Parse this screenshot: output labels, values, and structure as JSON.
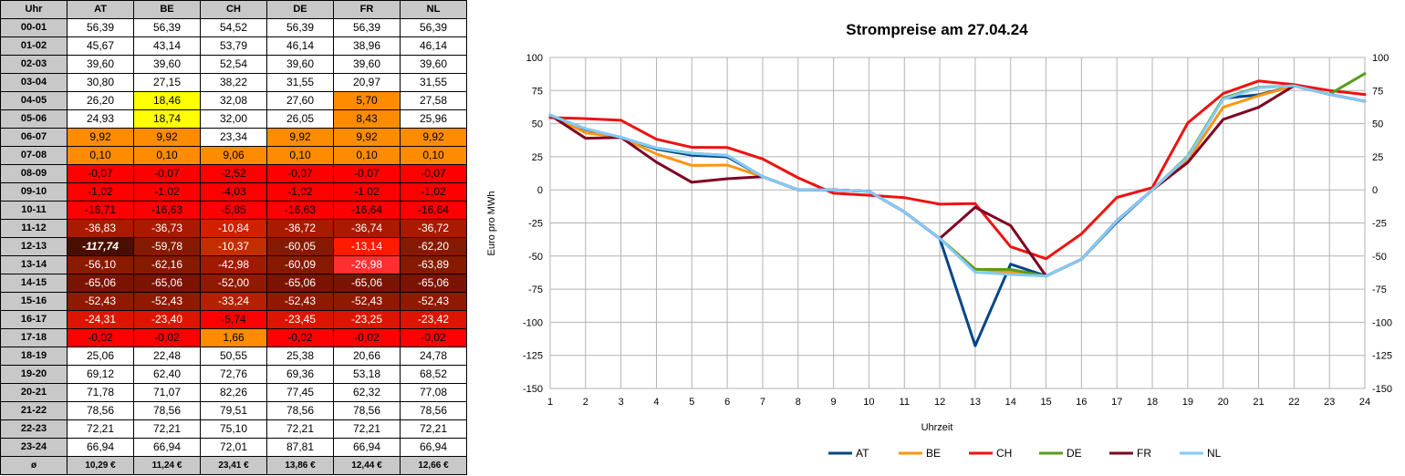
{
  "table": {
    "corner": "Uhr",
    "columns": [
      "AT",
      "BE",
      "CH",
      "DE",
      "FR",
      "NL"
    ],
    "rows": [
      {
        "label": "00-01",
        "cells": [
          {
            "v": "56,39",
            "bg": "#ffffff"
          },
          {
            "v": "56,39",
            "bg": "#ffffff"
          },
          {
            "v": "54,52",
            "bg": "#ffffff"
          },
          {
            "v": "56,39",
            "bg": "#ffffff"
          },
          {
            "v": "56,39",
            "bg": "#ffffff"
          },
          {
            "v": "56,39",
            "bg": "#ffffff"
          }
        ]
      },
      {
        "label": "01-02",
        "cells": [
          {
            "v": "45,67",
            "bg": "#ffffff"
          },
          {
            "v": "43,14",
            "bg": "#ffffff"
          },
          {
            "v": "53,79",
            "bg": "#ffffff"
          },
          {
            "v": "46,14",
            "bg": "#ffffff"
          },
          {
            "v": "38,96",
            "bg": "#ffffff"
          },
          {
            "v": "46,14",
            "bg": "#ffffff"
          }
        ]
      },
      {
        "label": "02-03",
        "cells": [
          {
            "v": "39,60",
            "bg": "#ffffff"
          },
          {
            "v": "39,60",
            "bg": "#ffffff"
          },
          {
            "v": "52,54",
            "bg": "#ffffff"
          },
          {
            "v": "39,60",
            "bg": "#ffffff"
          },
          {
            "v": "39,60",
            "bg": "#ffffff"
          },
          {
            "v": "39,60",
            "bg": "#ffffff"
          }
        ]
      },
      {
        "label": "03-04",
        "cells": [
          {
            "v": "30,80",
            "bg": "#ffffff"
          },
          {
            "v": "27,15",
            "bg": "#ffffff"
          },
          {
            "v": "38,22",
            "bg": "#ffffff"
          },
          {
            "v": "31,55",
            "bg": "#ffffff"
          },
          {
            "v": "20,97",
            "bg": "#ffffff"
          },
          {
            "v": "31,55",
            "bg": "#ffffff"
          }
        ]
      },
      {
        "label": "04-05",
        "cells": [
          {
            "v": "26,20",
            "bg": "#ffffff"
          },
          {
            "v": "18,46",
            "bg": "#ffff00"
          },
          {
            "v": "32,08",
            "bg": "#ffffff"
          },
          {
            "v": "27,60",
            "bg": "#ffffff"
          },
          {
            "v": "5,70",
            "bg": "#ff8c00"
          },
          {
            "v": "27,58",
            "bg": "#ffffff"
          }
        ]
      },
      {
        "label": "05-06",
        "cells": [
          {
            "v": "24,93",
            "bg": "#ffffff"
          },
          {
            "v": "18,74",
            "bg": "#ffff00"
          },
          {
            "v": "32,00",
            "bg": "#ffffff"
          },
          {
            "v": "26,05",
            "bg": "#ffffff"
          },
          {
            "v": "8,43",
            "bg": "#ff8c00"
          },
          {
            "v": "25,96",
            "bg": "#ffffff"
          }
        ]
      },
      {
        "label": "06-07",
        "cells": [
          {
            "v": "9,92",
            "bg": "#ff8c00"
          },
          {
            "v": "9,92",
            "bg": "#ff8c00"
          },
          {
            "v": "23,34",
            "bg": "#ffffff"
          },
          {
            "v": "9,92",
            "bg": "#ff8c00"
          },
          {
            "v": "9,92",
            "bg": "#ff8c00"
          },
          {
            "v": "9,92",
            "bg": "#ff8c00"
          }
        ]
      },
      {
        "label": "07-08",
        "cells": [
          {
            "v": "0,10",
            "bg": "#ff8c00"
          },
          {
            "v": "0,10",
            "bg": "#ff8c00"
          },
          {
            "v": "9,06",
            "bg": "#ff8c00"
          },
          {
            "v": "0,10",
            "bg": "#ff8c00"
          },
          {
            "v": "0,10",
            "bg": "#ff8c00"
          },
          {
            "v": "0,10",
            "bg": "#ff8c00"
          }
        ]
      },
      {
        "label": "08-09",
        "cells": [
          {
            "v": "-0,07",
            "bg": "#ff0000"
          },
          {
            "v": "-0,07",
            "bg": "#ff0000"
          },
          {
            "v": "-2,52",
            "bg": "#ff0000"
          },
          {
            "v": "-0,07",
            "bg": "#ff0000"
          },
          {
            "v": "-0,07",
            "bg": "#ff0000"
          },
          {
            "v": "-0,07",
            "bg": "#ff0000"
          }
        ]
      },
      {
        "label": "09-10",
        "cells": [
          {
            "v": "-1,02",
            "bg": "#ff0000"
          },
          {
            "v": "-1,02",
            "bg": "#ff0000"
          },
          {
            "v": "-4,03",
            "bg": "#ff0000"
          },
          {
            "v": "-1,02",
            "bg": "#ff0000"
          },
          {
            "v": "-1,02",
            "bg": "#ff0000"
          },
          {
            "v": "-1,02",
            "bg": "#ff0000"
          }
        ]
      },
      {
        "label": "10-11",
        "cells": [
          {
            "v": "-16,71",
            "bg": "#ff0000"
          },
          {
            "v": "-16,63",
            "bg": "#ff0000"
          },
          {
            "v": "-5,85",
            "bg": "#ff0000"
          },
          {
            "v": "-16,63",
            "bg": "#ff0000"
          },
          {
            "v": "-16,64",
            "bg": "#ff0000"
          },
          {
            "v": "-16,64",
            "bg": "#ff0000"
          }
        ]
      },
      {
        "label": "11-12",
        "cells": [
          {
            "v": "-36,83",
            "bg": "#aa1a00"
          },
          {
            "v": "-36,73",
            "bg": "#aa1a00"
          },
          {
            "v": "-10,84",
            "bg": "#d02000"
          },
          {
            "v": "-36,72",
            "bg": "#aa1a00"
          },
          {
            "v": "-36,74",
            "bg": "#aa1a00"
          },
          {
            "v": "-36,72",
            "bg": "#aa1a00"
          }
        ]
      },
      {
        "label": "12-13",
        "cells": [
          {
            "v": "-117,74",
            "bg": "#4a0e00",
            "bold": true,
            "italic": true
          },
          {
            "v": "-59,78",
            "bg": "#861a00"
          },
          {
            "v": "-10,37",
            "bg": "#c22e00"
          },
          {
            "v": "-60,05",
            "bg": "#861a00"
          },
          {
            "v": "-13,14",
            "bg": "#ff1a00"
          },
          {
            "v": "-62,20",
            "bg": "#861a00"
          }
        ]
      },
      {
        "label": "13-14",
        "cells": [
          {
            "v": "-56,10",
            "bg": "#8a1a00"
          },
          {
            "v": "-62,16",
            "bg": "#861a00"
          },
          {
            "v": "-42,98",
            "bg": "#a01a00"
          },
          {
            "v": "-60,09",
            "bg": "#861a00"
          },
          {
            "v": "-26,98",
            "bg": "#ff3030"
          },
          {
            "v": "-63,89",
            "bg": "#861a00"
          }
        ]
      },
      {
        "label": "14-15",
        "cells": [
          {
            "v": "-65,06",
            "bg": "#7a1400"
          },
          {
            "v": "-65,06",
            "bg": "#7a1400"
          },
          {
            "v": "-52,00",
            "bg": "#901a00"
          },
          {
            "v": "-65,06",
            "bg": "#7a1400"
          },
          {
            "v": "-65,06",
            "bg": "#7a1400"
          },
          {
            "v": "-65,06",
            "bg": "#7a1400"
          }
        ]
      },
      {
        "label": "15-16",
        "cells": [
          {
            "v": "-52,43",
            "bg": "#901a00"
          },
          {
            "v": "-52,43",
            "bg": "#901a00"
          },
          {
            "v": "-33,24",
            "bg": "#b42000"
          },
          {
            "v": "-52,43",
            "bg": "#901a00"
          },
          {
            "v": "-52,43",
            "bg": "#901a00"
          },
          {
            "v": "-52,43",
            "bg": "#901a00"
          }
        ]
      },
      {
        "label": "16-17",
        "cells": [
          {
            "v": "-24,31",
            "bg": "#dd1500"
          },
          {
            "v": "-23,40",
            "bg": "#dd1500"
          },
          {
            "v": "-5,74",
            "bg": "#ff0000"
          },
          {
            "v": "-23,45",
            "bg": "#dd1500"
          },
          {
            "v": "-23,25",
            "bg": "#dd1500"
          },
          {
            "v": "-23,42",
            "bg": "#dd1500"
          }
        ]
      },
      {
        "label": "17-18",
        "cells": [
          {
            "v": "-0,02",
            "bg": "#ff0000"
          },
          {
            "v": "-0,02",
            "bg": "#ff0000"
          },
          {
            "v": "1,66",
            "bg": "#ff8c00"
          },
          {
            "v": "-0,02",
            "bg": "#ff0000"
          },
          {
            "v": "-0,02",
            "bg": "#ff0000"
          },
          {
            "v": "-0,02",
            "bg": "#ff0000"
          }
        ]
      },
      {
        "label": "18-19",
        "cells": [
          {
            "v": "25,06",
            "bg": "#ffffff"
          },
          {
            "v": "22,48",
            "bg": "#ffffff"
          },
          {
            "v": "50,55",
            "bg": "#ffffff"
          },
          {
            "v": "25,38",
            "bg": "#ffffff"
          },
          {
            "v": "20,66",
            "bg": "#ffffff"
          },
          {
            "v": "24,78",
            "bg": "#ffffff"
          }
        ]
      },
      {
        "label": "19-20",
        "cells": [
          {
            "v": "69,12",
            "bg": "#ffffff"
          },
          {
            "v": "62,40",
            "bg": "#ffffff"
          },
          {
            "v": "72,76",
            "bg": "#ffffff"
          },
          {
            "v": "69,36",
            "bg": "#ffffff"
          },
          {
            "v": "53,18",
            "bg": "#ffffff"
          },
          {
            "v": "68,52",
            "bg": "#ffffff"
          }
        ]
      },
      {
        "label": "20-21",
        "cells": [
          {
            "v": "71,78",
            "bg": "#ffffff"
          },
          {
            "v": "71,07",
            "bg": "#ffffff"
          },
          {
            "v": "82,26",
            "bg": "#ffffff"
          },
          {
            "v": "77,45",
            "bg": "#ffffff"
          },
          {
            "v": "62,32",
            "bg": "#ffffff"
          },
          {
            "v": "77,08",
            "bg": "#ffffff"
          }
        ]
      },
      {
        "label": "21-22",
        "cells": [
          {
            "v": "78,56",
            "bg": "#ffffff"
          },
          {
            "v": "78,56",
            "bg": "#ffffff"
          },
          {
            "v": "79,51",
            "bg": "#ffffff"
          },
          {
            "v": "78,56",
            "bg": "#ffffff"
          },
          {
            "v": "78,56",
            "bg": "#ffffff"
          },
          {
            "v": "78,56",
            "bg": "#ffffff"
          }
        ]
      },
      {
        "label": "22-23",
        "cells": [
          {
            "v": "72,21",
            "bg": "#ffffff"
          },
          {
            "v": "72,21",
            "bg": "#ffffff"
          },
          {
            "v": "75,10",
            "bg": "#ffffff"
          },
          {
            "v": "72,21",
            "bg": "#ffffff"
          },
          {
            "v": "72,21",
            "bg": "#ffffff"
          },
          {
            "v": "72,21",
            "bg": "#ffffff"
          }
        ]
      },
      {
        "label": "23-24",
        "cells": [
          {
            "v": "66,94",
            "bg": "#ffffff"
          },
          {
            "v": "66,94",
            "bg": "#ffffff"
          },
          {
            "v": "72,01",
            "bg": "#ffffff"
          },
          {
            "v": "87,81",
            "bg": "#ffffff"
          },
          {
            "v": "66,94",
            "bg": "#ffffff"
          },
          {
            "v": "66,94",
            "bg": "#ffffff"
          }
        ]
      }
    ],
    "avg_label": "ø",
    "averages": [
      "10,29 €",
      "11,24 €",
      "23,41 €",
      "13,86 €",
      "12,44 €",
      "12,66 €"
    ]
  },
  "chart_data": {
    "type": "line",
    "title": "Strompreise am 27.04.24",
    "xlabel": "Uhrzeit",
    "ylabel": "Euro pro MWh",
    "x": [
      1,
      2,
      3,
      4,
      5,
      6,
      7,
      8,
      9,
      10,
      11,
      12,
      13,
      14,
      15,
      16,
      17,
      18,
      19,
      20,
      21,
      22,
      23,
      24
    ],
    "ylim": [
      -150,
      100
    ],
    "ytick_step": 25,
    "grid": true,
    "legend_position": "bottom",
    "series": [
      {
        "name": "AT",
        "color": "#004586",
        "values": [
          56.39,
          45.67,
          39.6,
          30.8,
          26.2,
          24.93,
          9.92,
          0.1,
          -0.07,
          -1.02,
          -16.71,
          -36.83,
          -117.74,
          -56.1,
          -65.06,
          -52.43,
          -24.31,
          -0.02,
          25.06,
          69.12,
          71.78,
          78.56,
          72.21,
          66.94
        ]
      },
      {
        "name": "BE",
        "color": "#ff950e",
        "values": [
          56.39,
          43.14,
          39.6,
          27.15,
          18.46,
          18.74,
          9.92,
          0.1,
          -0.07,
          -1.02,
          -16.63,
          -36.73,
          -59.78,
          -62.16,
          -65.06,
          -52.43,
          -23.4,
          -0.02,
          22.48,
          62.4,
          71.07,
          78.56,
          72.21,
          66.94
        ]
      },
      {
        "name": "CH",
        "color": "#ee1111",
        "values": [
          54.52,
          53.79,
          52.54,
          38.22,
          32.08,
          32.0,
          23.34,
          9.06,
          -2.52,
          -4.03,
          -5.85,
          -10.84,
          -10.37,
          -42.98,
          -52.0,
          -33.24,
          -5.74,
          1.66,
          50.55,
          72.76,
          82.26,
          79.51,
          75.1,
          72.01
        ]
      },
      {
        "name": "DE",
        "color": "#579d1c",
        "values": [
          56.39,
          46.14,
          39.6,
          31.55,
          27.6,
          26.05,
          9.92,
          0.1,
          -0.07,
          -1.02,
          -16.63,
          -36.72,
          -60.05,
          -60.09,
          -65.06,
          -52.43,
          -23.45,
          -0.02,
          25.38,
          69.36,
          77.45,
          78.56,
          72.21,
          87.81
        ]
      },
      {
        "name": "FR",
        "color": "#7e0021",
        "values": [
          56.39,
          38.96,
          39.6,
          20.97,
          5.7,
          8.43,
          9.92,
          0.1,
          -0.07,
          -1.02,
          -16.64,
          -36.74,
          -13.14,
          -26.98,
          -65.06,
          -52.43,
          -23.25,
          -0.02,
          20.66,
          53.18,
          62.32,
          78.56,
          72.21,
          66.94
        ]
      },
      {
        "name": "NL",
        "color": "#83caff",
        "values": [
          56.39,
          46.14,
          39.6,
          31.55,
          27.58,
          25.96,
          9.92,
          0.1,
          -0.07,
          -1.02,
          -16.64,
          -36.72,
          -62.2,
          -63.89,
          -65.06,
          -52.43,
          -23.42,
          -0.02,
          24.78,
          68.52,
          77.08,
          78.56,
          72.21,
          66.94
        ]
      }
    ]
  }
}
